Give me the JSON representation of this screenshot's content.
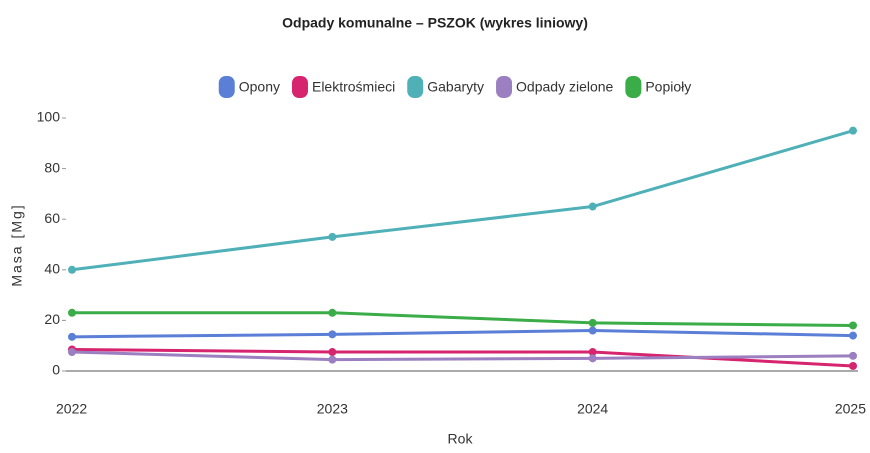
{
  "chart_data": {
    "type": "line",
    "title": "Odpady komunalne – PSZOK (wykres liniowy)",
    "x_label": "Rok",
    "y_label": "Masa [Mg]",
    "categories": [
      "2022",
      "2023",
      "2024",
      "2025"
    ],
    "series": [
      {
        "name": "Opony",
        "color": "#5b7fd6",
        "values": [
          13.5,
          14.5,
          16,
          14
        ]
      },
      {
        "name": "Elektrośmieci",
        "color": "#d6246e",
        "values": [
          8.5,
          7.5,
          7.5,
          2
        ]
      },
      {
        "name": "Gabaryty",
        "color": "#4fb0b8",
        "values": [
          40,
          53,
          65,
          95
        ]
      },
      {
        "name": "Odpady zielone",
        "color": "#9b7fc0",
        "values": [
          7.5,
          4.5,
          5,
          6
        ]
      },
      {
        "name": "Popioły",
        "color": "#3aac48",
        "values": [
          23,
          23,
          19,
          18
        ]
      }
    ],
    "ylim": [
      0,
      100
    ],
    "yticks": [
      0,
      20,
      40,
      60,
      80,
      100
    ],
    "legend": "top"
  }
}
